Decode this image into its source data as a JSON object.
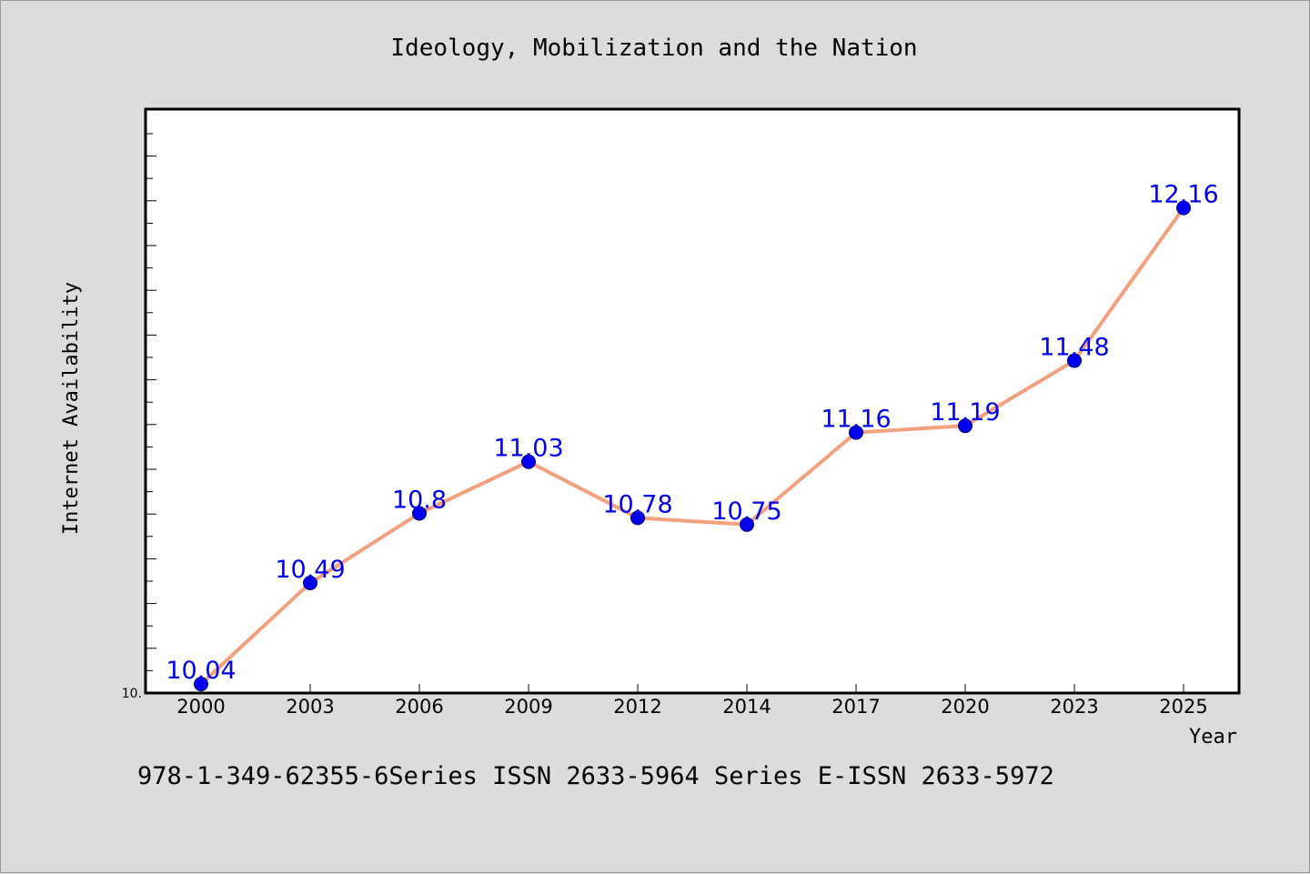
{
  "footer": {
    "text": "978-1-349-62355-6Series ISSN 2633-5964 Series E-ISSN 2633-5972"
  },
  "chart_data": {
    "type": "line",
    "title": "Ideology, Mobilization and the Nation",
    "xlabel": "Year",
    "ylabel": "Internet Availability",
    "categories": [
      "2000",
      "2003",
      "2006",
      "2009",
      "2012",
      "2014",
      "2017",
      "2020",
      "2023",
      "2025"
    ],
    "series": [
      {
        "values": [
          10.04,
          10.49,
          10.8,
          11.03,
          10.78,
          10.75,
          11.16,
          11.19,
          11.48,
          12.16
        ],
        "labels": [
          "10.04",
          "10.49",
          "10.8",
          "11.03",
          "10.78",
          "10.75",
          "11.16",
          "11.19",
          "11.48",
          "12.16"
        ]
      }
    ],
    "y_tick_labels": [
      {
        "value": 10.0,
        "label": "10."
      }
    ],
    "ylim": [
      10.0,
      12.6
    ],
    "grid": false,
    "colors": {
      "line": "#f4a07c",
      "marker": "#0000ee",
      "data_label": "#0000ee",
      "plot_background": "#ffffff",
      "page_background": "#dcdcdc"
    }
  }
}
